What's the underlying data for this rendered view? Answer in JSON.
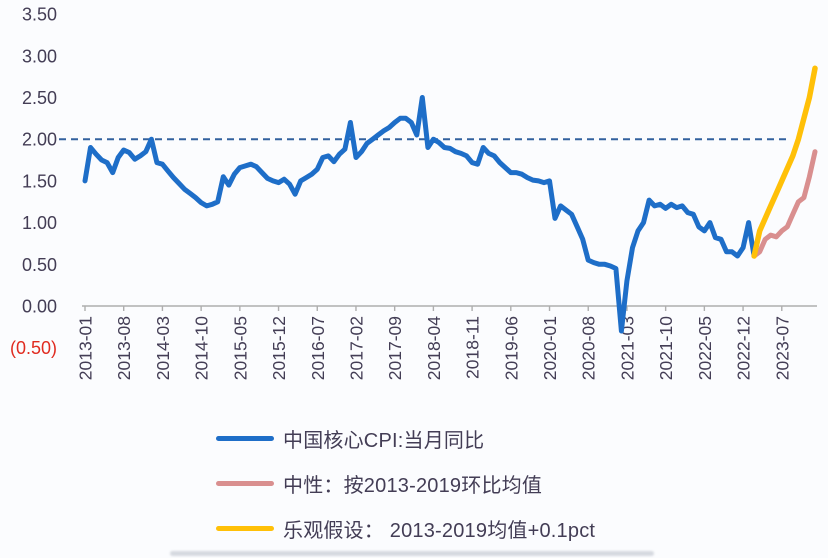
{
  "chart_data": {
    "type": "line",
    "title": "",
    "xlabel": "",
    "ylabel": "",
    "x_start_month": "2013-01",
    "x_end_month": "2024-01",
    "x_tick_labels": [
      "2013-01",
      "2013-08",
      "2014-03",
      "2014-10",
      "2015-05",
      "2015-12",
      "2016-07",
      "2017-02",
      "2017-09",
      "2018-04",
      "2018-11",
      "2019-06",
      "2020-01",
      "2020-08",
      "2021-03",
      "2021-10",
      "2022-05",
      "2022-12",
      "2023-07"
    ],
    "x_tick_month_step": 7,
    "y_ticks": [
      {
        "value": 3.5,
        "label": "3.50"
      },
      {
        "value": 3.0,
        "label": "3.00"
      },
      {
        "value": 2.5,
        "label": "2.50"
      },
      {
        "value": 2.0,
        "label": "2.00"
      },
      {
        "value": 1.5,
        "label": "1.50"
      },
      {
        "value": 1.0,
        "label": "1.00"
      },
      {
        "value": 0.5,
        "label": "0.50"
      },
      {
        "value": 0.0,
        "label": "0.00"
      },
      {
        "value": -0.5,
        "label": "(0.50)"
      }
    ],
    "ylim": [
      -0.5,
      3.5
    ],
    "grid": false,
    "reference_line": {
      "value": 2.0,
      "style": "dashed",
      "color": "#33619e"
    },
    "series": [
      {
        "name": "中国核心CPI:当月同比",
        "color": "#1e6ec8",
        "width": 5,
        "start_index": 0,
        "frequency": "monthly",
        "values": [
          1.5,
          1.9,
          1.82,
          1.75,
          1.72,
          1.6,
          1.78,
          1.87,
          1.84,
          1.76,
          1.8,
          1.85,
          2.0,
          1.72,
          1.7,
          1.62,
          1.54,
          1.47,
          1.4,
          1.35,
          1.3,
          1.24,
          1.2,
          1.22,
          1.25,
          1.55,
          1.45,
          1.58,
          1.66,
          1.68,
          1.7,
          1.67,
          1.6,
          1.53,
          1.5,
          1.48,
          1.52,
          1.46,
          1.34,
          1.5,
          1.54,
          1.58,
          1.64,
          1.78,
          1.8,
          1.73,
          1.82,
          1.88,
          2.2,
          1.78,
          1.85,
          1.95,
          2.0,
          2.05,
          2.1,
          2.14,
          2.2,
          2.25,
          2.25,
          2.2,
          2.05,
          2.5,
          1.9,
          2.0,
          1.96,
          1.9,
          1.89,
          1.85,
          1.83,
          1.8,
          1.72,
          1.7,
          1.9,
          1.83,
          1.8,
          1.72,
          1.66,
          1.6,
          1.6,
          1.58,
          1.54,
          1.51,
          1.5,
          1.48,
          1.5,
          1.05,
          1.2,
          1.15,
          1.1,
          0.95,
          0.8,
          0.55,
          0.52,
          0.5,
          0.5,
          0.48,
          0.45,
          -0.3,
          0.3,
          0.7,
          0.9,
          1.0,
          1.27,
          1.2,
          1.22,
          1.17,
          1.22,
          1.18,
          1.2,
          1.12,
          1.1,
          0.95,
          0.9,
          1.0,
          0.82,
          0.8,
          0.65,
          0.65,
          0.6,
          0.7,
          1.0,
          0.6
        ]
      },
      {
        "name": "中性：按2013-2019环比均值",
        "color": "#d98f8f",
        "width": 5,
        "start_index": 121,
        "frequency": "monthly",
        "values": [
          0.6,
          0.65,
          0.8,
          0.85,
          0.83,
          0.9,
          0.95,
          1.1,
          1.25,
          1.3,
          1.55,
          1.85
        ]
      },
      {
        "name": "乐观假设： 2013-2019均值+0.1pct",
        "color": "#ffc008",
        "width": 5.5,
        "start_index": 121,
        "frequency": "monthly",
        "values": [
          0.6,
          0.9,
          1.05,
          1.2,
          1.35,
          1.5,
          1.65,
          1.8,
          2.0,
          2.25,
          2.5,
          2.85
        ]
      }
    ],
    "legend_position": "bottom-left"
  },
  "legend": [
    {
      "label": "中国核心CPI:当月同比"
    },
    {
      "label": "中性：按2013-2019环比均值"
    },
    {
      "label": "乐观假设： 2013-2019均值+0.1pct"
    }
  ],
  "colors": {
    "axis_text": "#433d55",
    "negative_tick_text": "#e02b20",
    "axis_line": "#aeaeae",
    "reference_dashed": "#33619e",
    "series_blue": "#1e6ec8",
    "series_pink": "#d98f8f",
    "series_yellow": "#ffc008",
    "background": "#fbfcfe"
  }
}
